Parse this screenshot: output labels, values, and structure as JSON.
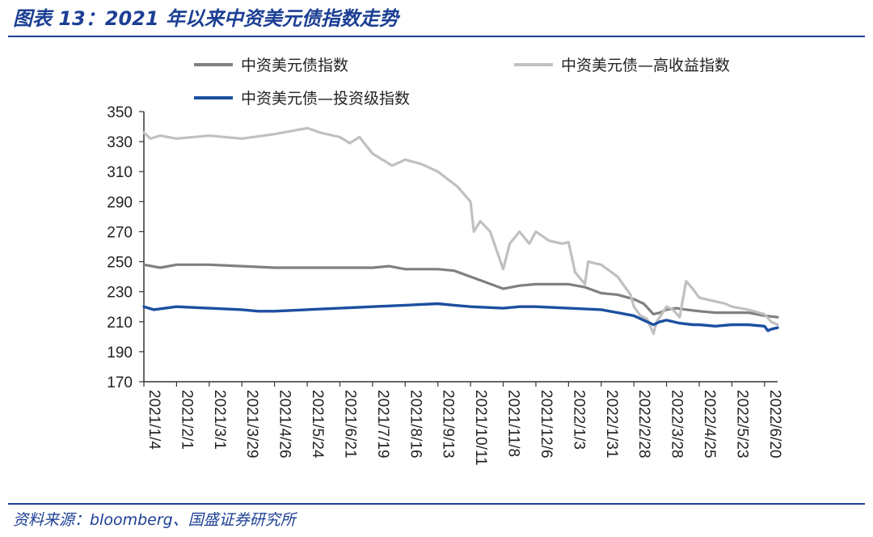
{
  "header": {
    "title": "图表 13：2021 年以来中资美元债指数走势"
  },
  "footer": {
    "source": "资料来源：bloomberg、国盛证券研究所"
  },
  "chart_data": {
    "type": "line",
    "title": "2021 年以来中资美元债指数走势",
    "xlabel": "",
    "ylabel": "",
    "ylim": [
      170,
      350
    ],
    "yticks": [
      170,
      190,
      210,
      230,
      250,
      270,
      290,
      310,
      330,
      350
    ],
    "categories": [
      "2021/1/4",
      "2021/2/1",
      "2021/3/1",
      "2021/3/29",
      "2021/4/26",
      "2021/5/24",
      "2021/6/21",
      "2021/7/19",
      "2021/8/16",
      "2021/9/13",
      "2021/10/11",
      "2021/11/8",
      "2021/12/6",
      "2022/1/3",
      "2022/1/31",
      "2022/2/28",
      "2022/3/28",
      "2022/4/25",
      "2022/5/23",
      "2022/6/20"
    ],
    "x_end_week": 19.4,
    "legend_position": "top",
    "series": [
      {
        "name": "中资美元债指数",
        "color": "#808080",
        "points": [
          [
            0,
            248
          ],
          [
            0.5,
            246
          ],
          [
            1,
            248
          ],
          [
            2,
            248
          ],
          [
            3,
            247
          ],
          [
            4,
            246
          ],
          [
            5,
            246
          ],
          [
            6,
            246
          ],
          [
            7,
            246
          ],
          [
            7.5,
            247
          ],
          [
            8,
            245
          ],
          [
            9,
            245
          ],
          [
            9.5,
            244
          ],
          [
            10,
            240
          ],
          [
            10.5,
            236
          ],
          [
            11,
            232
          ],
          [
            11.5,
            234
          ],
          [
            12,
            235
          ],
          [
            12.5,
            235
          ],
          [
            13,
            235
          ],
          [
            13.5,
            233
          ],
          [
            14,
            229
          ],
          [
            14.5,
            228
          ],
          [
            15,
            225
          ],
          [
            15.3,
            222
          ],
          [
            15.6,
            215
          ],
          [
            15.8,
            216
          ],
          [
            16,
            218
          ],
          [
            16.3,
            219
          ],
          [
            16.6,
            218
          ],
          [
            17,
            217
          ],
          [
            17.5,
            216
          ],
          [
            18,
            216
          ],
          [
            18.5,
            216
          ],
          [
            19,
            214
          ],
          [
            19.4,
            213
          ]
        ]
      },
      {
        "name": "中资美元债—高收益指数",
        "color": "#c0c0c0",
        "points": [
          [
            0,
            336
          ],
          [
            0.2,
            332
          ],
          [
            0.5,
            334
          ],
          [
            1,
            332
          ],
          [
            2,
            334
          ],
          [
            3,
            332
          ],
          [
            4,
            335
          ],
          [
            5,
            339
          ],
          [
            5.4,
            336
          ],
          [
            6,
            333
          ],
          [
            6.3,
            329
          ],
          [
            6.6,
            333
          ],
          [
            7,
            322
          ],
          [
            7.3,
            318
          ],
          [
            7.6,
            314
          ],
          [
            8,
            318
          ],
          [
            8.5,
            315
          ],
          [
            9,
            310
          ],
          [
            9.3,
            305
          ],
          [
            9.6,
            300
          ],
          [
            9.8,
            295
          ],
          [
            10,
            290
          ],
          [
            10.1,
            270
          ],
          [
            10.3,
            277
          ],
          [
            10.6,
            270
          ],
          [
            11,
            245
          ],
          [
            11.2,
            262
          ],
          [
            11.5,
            270
          ],
          [
            11.8,
            262
          ],
          [
            12,
            270
          ],
          [
            12.4,
            264
          ],
          [
            12.8,
            262
          ],
          [
            13,
            263
          ],
          [
            13.2,
            243
          ],
          [
            13.5,
            235
          ],
          [
            13.6,
            250
          ],
          [
            14,
            248
          ],
          [
            14.5,
            240
          ],
          [
            14.9,
            228
          ],
          [
            15,
            220
          ],
          [
            15.2,
            214
          ],
          [
            15.4,
            212
          ],
          [
            15.6,
            202
          ],
          [
            15.7,
            210
          ],
          [
            16,
            220
          ],
          [
            16.2,
            218
          ],
          [
            16.4,
            213
          ],
          [
            16.6,
            237
          ],
          [
            16.8,
            232
          ],
          [
            17,
            226
          ],
          [
            17.4,
            224
          ],
          [
            17.8,
            222
          ],
          [
            18,
            220
          ],
          [
            18.5,
            218
          ],
          [
            19,
            215
          ],
          [
            19.2,
            210
          ],
          [
            19.4,
            208
          ]
        ]
      },
      {
        "name": "中资美元债—投资级指数",
        "color": "#1c4fa0",
        "points": [
          [
            0,
            220
          ],
          [
            0.3,
            218
          ],
          [
            1,
            220
          ],
          [
            2,
            219
          ],
          [
            3,
            218
          ],
          [
            3.5,
            217
          ],
          [
            4,
            217
          ],
          [
            5,
            218
          ],
          [
            6,
            219
          ],
          [
            7,
            220
          ],
          [
            8,
            221
          ],
          [
            9,
            222
          ],
          [
            9.5,
            221
          ],
          [
            10,
            220
          ],
          [
            11,
            219
          ],
          [
            11.5,
            220
          ],
          [
            12,
            220
          ],
          [
            13,
            219
          ],
          [
            14,
            218
          ],
          [
            14.5,
            216
          ],
          [
            15,
            214
          ],
          [
            15.3,
            211
          ],
          [
            15.6,
            208
          ],
          [
            15.8,
            210
          ],
          [
            16,
            211
          ],
          [
            16.4,
            209
          ],
          [
            16.8,
            208
          ],
          [
            17,
            208
          ],
          [
            17.5,
            207
          ],
          [
            18,
            208
          ],
          [
            18.5,
            208
          ],
          [
            19,
            207
          ],
          [
            19.1,
            204
          ],
          [
            19.2,
            205
          ],
          [
            19.4,
            206
          ]
        ]
      }
    ]
  }
}
